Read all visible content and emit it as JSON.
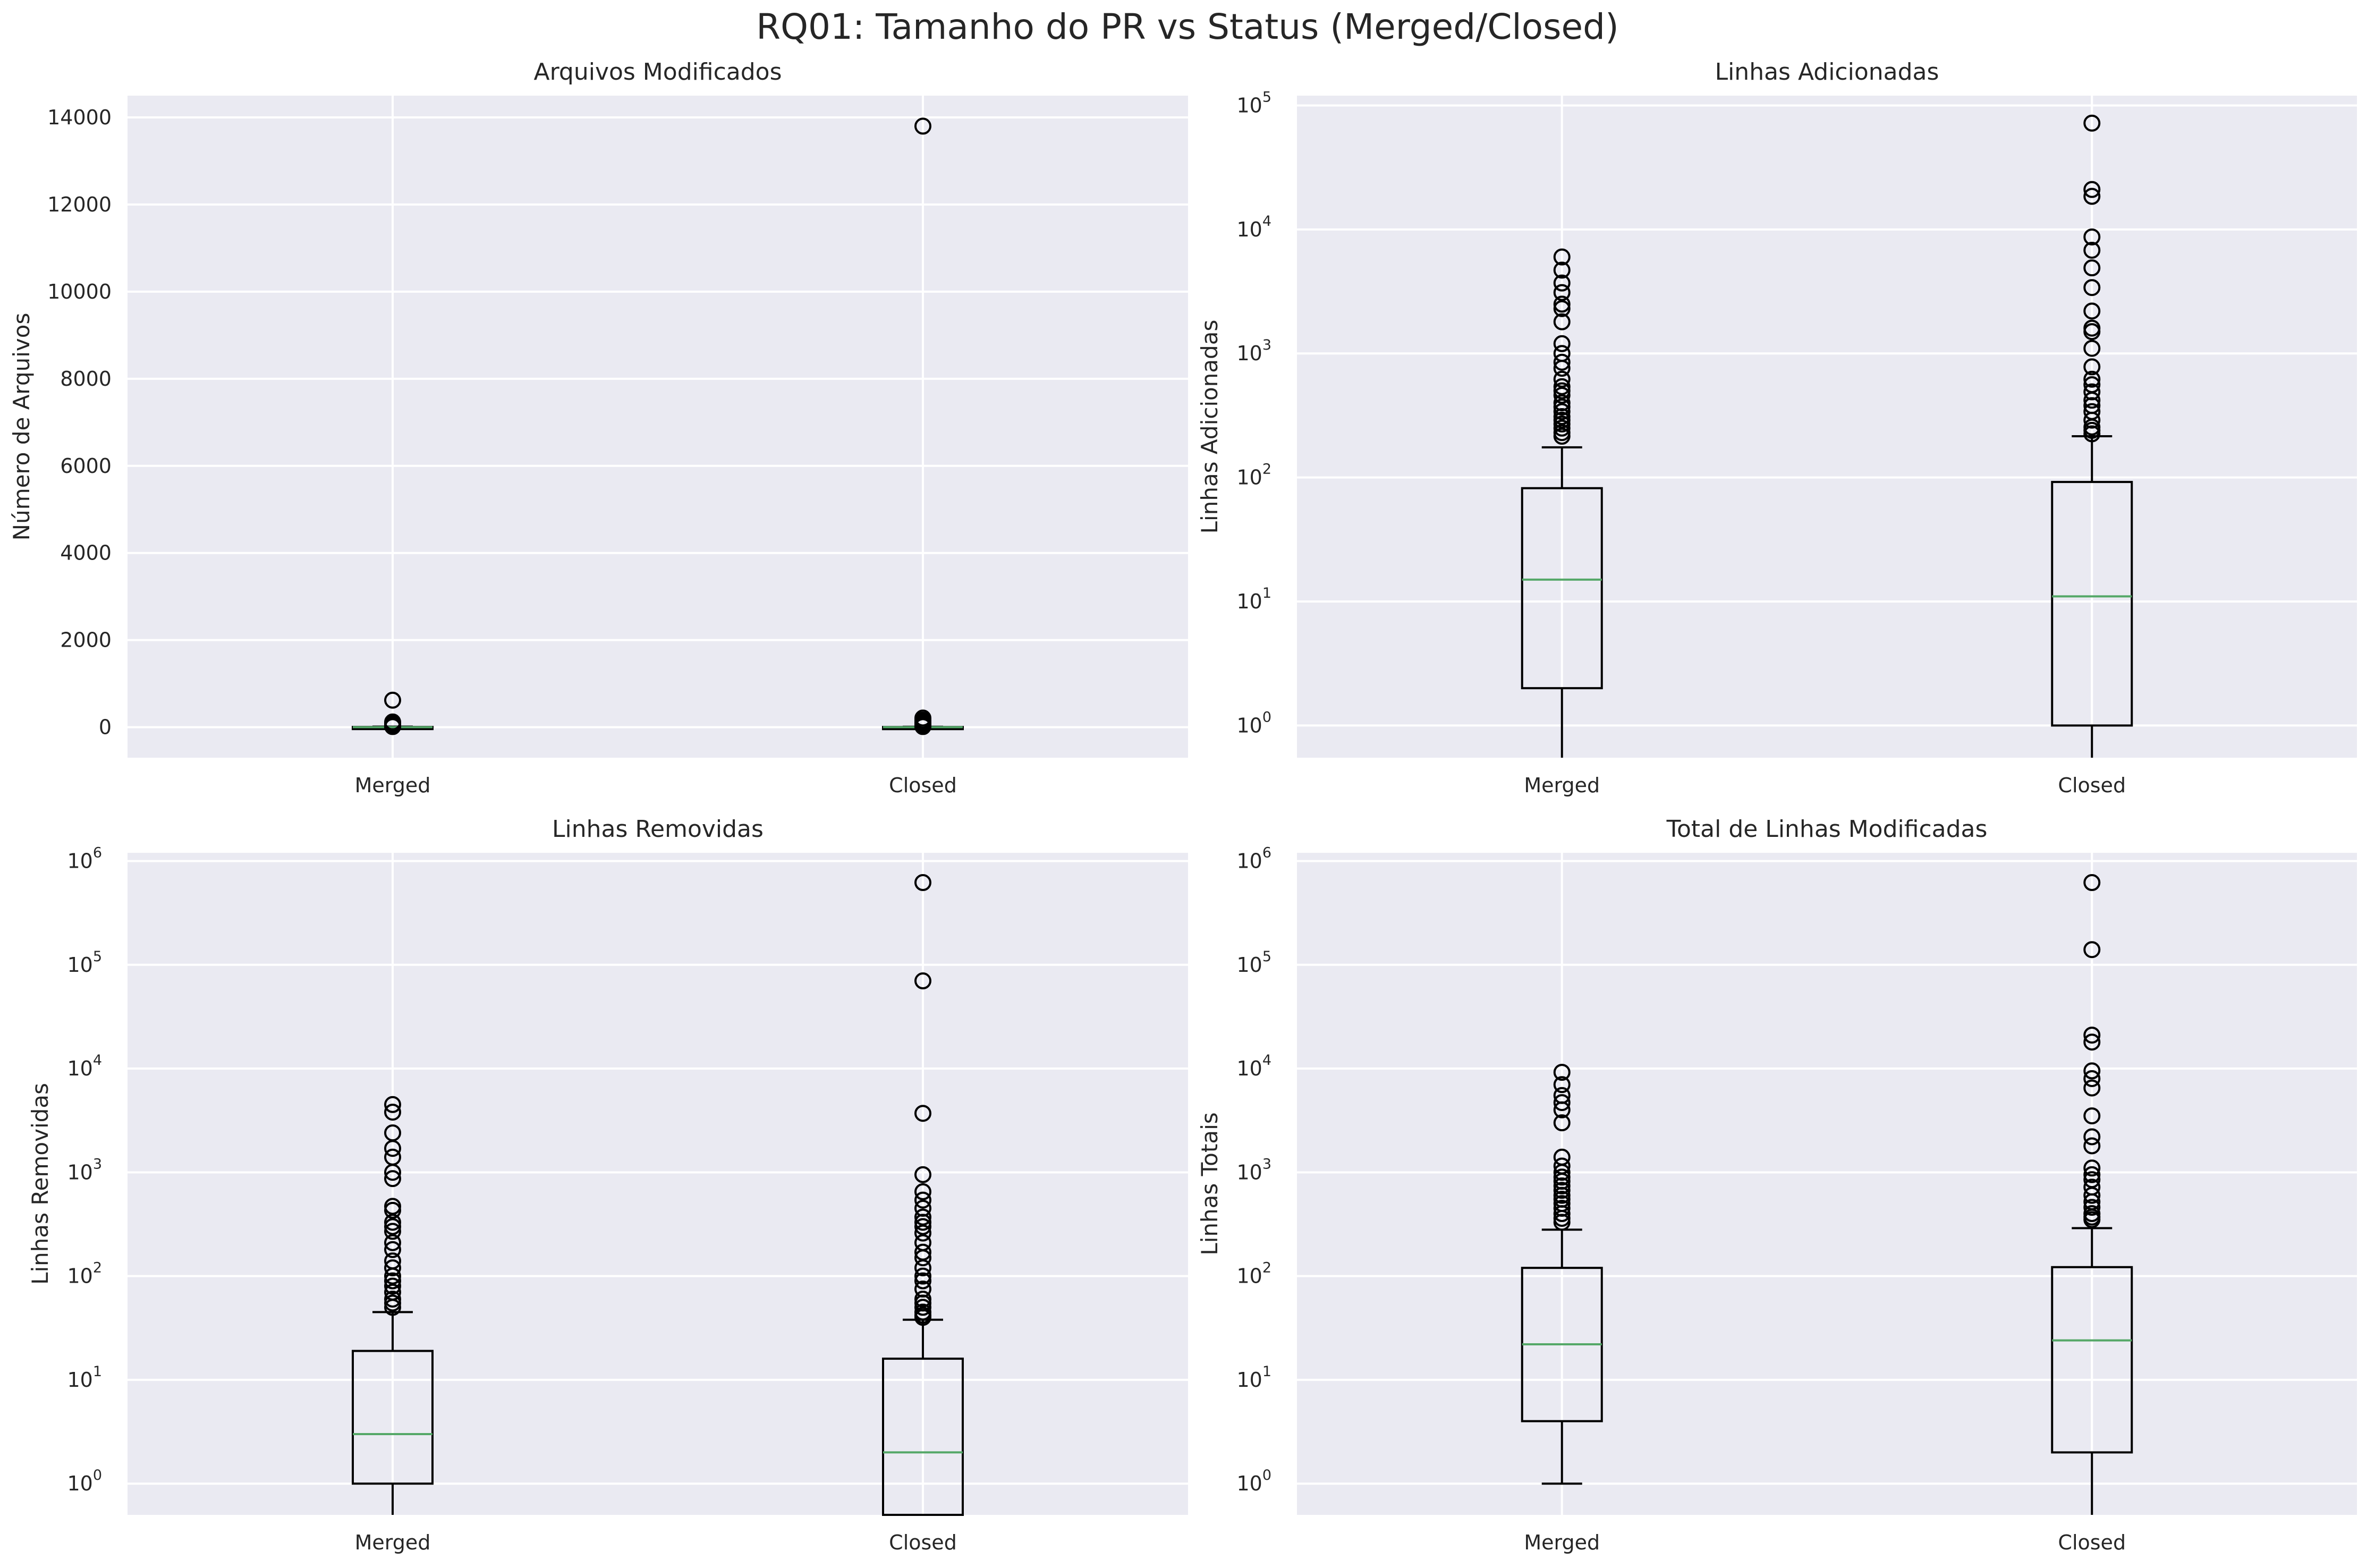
{
  "figure": {
    "title": "RQ01: Tamanho do PR vs Status (Merged/Closed)"
  },
  "colors": {
    "axes_background": "#EAEAF2",
    "grid": "#FFFFFF",
    "box": "#000000",
    "median": "#55A868",
    "text": "#262626"
  },
  "chart_data": [
    {
      "type": "box",
      "title": "Arquivos Modificados",
      "xlabel": "",
      "ylabel": "Número de Arquivos",
      "yscale": "linear",
      "ylim": [
        -700,
        14500
      ],
      "yticks": [
        0,
        2000,
        4000,
        6000,
        8000,
        10000,
        12000,
        14000
      ],
      "ytick_labels": [
        "0",
        "2000",
        "4000",
        "6000",
        "8000",
        "10000",
        "12000",
        "14000"
      ],
      "categories": [
        "Merged",
        "Closed"
      ],
      "boxes": [
        {
          "q1": 1,
          "median": 2,
          "q3": 6,
          "whisker_low": 1,
          "whisker_high": 13,
          "outliers": [
            620,
            120,
            90,
            70,
            55,
            45,
            35,
            25,
            18,
            15
          ]
        },
        {
          "q1": 1,
          "median": 2,
          "q3": 5,
          "whisker_low": 1,
          "whisker_high": 11,
          "outliers": [
            13800,
            210,
            160,
            120,
            90,
            60,
            40,
            25,
            15
          ]
        }
      ]
    },
    {
      "type": "box",
      "title": "Linhas Adicionadas",
      "xlabel": "",
      "ylabel": "Linhas Adicionadas",
      "yscale": "log",
      "ylim": [
        0.55,
        120000
      ],
      "yticks": [
        1,
        10,
        100,
        1000,
        10000,
        100000
      ],
      "ytick_labels": [
        "10^0",
        "10^1",
        "10^2",
        "10^3",
        "10^4",
        "10^5"
      ],
      "categories": [
        "Merged",
        "Closed"
      ],
      "boxes": [
        {
          "q1": 2,
          "median": 15,
          "q3": 82,
          "whisker_low": 0.55,
          "whisker_high": 175,
          "outliers": [
            6000,
            4700,
            3700,
            3100,
            2500,
            2300,
            1800,
            1200,
            1000,
            850,
            760,
            620,
            540,
            500,
            460,
            400,
            370,
            340,
            310,
            290,
            270,
            250,
            230,
            215
          ]
        },
        {
          "q1": 1,
          "median": 11,
          "q3": 92,
          "whisker_low": 0.55,
          "whisker_high": 215,
          "outliers": [
            72000,
            21000,
            18500,
            8700,
            6800,
            4900,
            3400,
            2200,
            1600,
            1500,
            1100,
            780,
            620,
            560,
            490,
            420,
            380,
            340,
            290,
            255,
            240,
            225
          ]
        }
      ]
    },
    {
      "type": "box",
      "title": "Linhas Removidas",
      "xlabel": "",
      "ylabel": "Linhas Removidas",
      "yscale": "log",
      "ylim": [
        0.5,
        1200000
      ],
      "yticks": [
        1,
        10,
        100,
        1000,
        10000,
        100000,
        1000000
      ],
      "ytick_labels": [
        "10^0",
        "10^1",
        "10^2",
        "10^3",
        "10^4",
        "10^5",
        "10^6"
      ],
      "categories": [
        "Merged",
        "Closed"
      ],
      "boxes": [
        {
          "q1": 1,
          "median": 3,
          "q3": 19,
          "whisker_low": 0.5,
          "whisker_high": 45,
          "outliers": [
            4500,
            3800,
            2400,
            1700,
            1400,
            1000,
            870,
            470,
            430,
            330,
            300,
            270,
            210,
            180,
            140,
            120,
            100,
            90,
            80,
            70,
            60,
            55,
            50
          ]
        },
        {
          "q1": 0.5,
          "median": 2,
          "q3": 16,
          "whisker_low": 0.5,
          "whisker_high": 38,
          "outliers": [
            620000,
            70000,
            3700,
            950,
            650,
            540,
            450,
            370,
            330,
            300,
            260,
            210,
            170,
            150,
            120,
            100,
            90,
            75,
            60,
            55,
            50,
            45,
            42,
            40
          ]
        }
      ]
    },
    {
      "type": "box",
      "title": "Total de Linhas Modificadas",
      "xlabel": "",
      "ylabel": "Linhas Totais",
      "yscale": "log",
      "ylim": [
        0.5,
        1200000
      ],
      "yticks": [
        1,
        10,
        100,
        1000,
        10000,
        100000,
        1000000
      ],
      "ytick_labels": [
        "10^0",
        "10^1",
        "10^2",
        "10^3",
        "10^4",
        "10^5",
        "10^6"
      ],
      "categories": [
        "Merged",
        "Closed"
      ],
      "boxes": [
        {
          "q1": 4,
          "median": 22,
          "q3": 120,
          "whisker_low": 1,
          "whisker_high": 280,
          "outliers": [
            9200,
            7000,
            5500,
            4700,
            4000,
            3000,
            1400,
            1150,
            1000,
            900,
            820,
            740,
            670,
            600,
            550,
            500,
            450,
            400,
            360,
            330
          ]
        },
        {
          "q1": 2,
          "median": 24,
          "q3": 122,
          "whisker_low": 0.5,
          "whisker_high": 290,
          "outliers": [
            620000,
            140000,
            21000,
            18000,
            9500,
            8000,
            6500,
            3500,
            2200,
            1800,
            1100,
            950,
            850,
            720,
            600,
            520,
            460,
            400,
            370,
            350
          ]
        }
      ]
    }
  ]
}
